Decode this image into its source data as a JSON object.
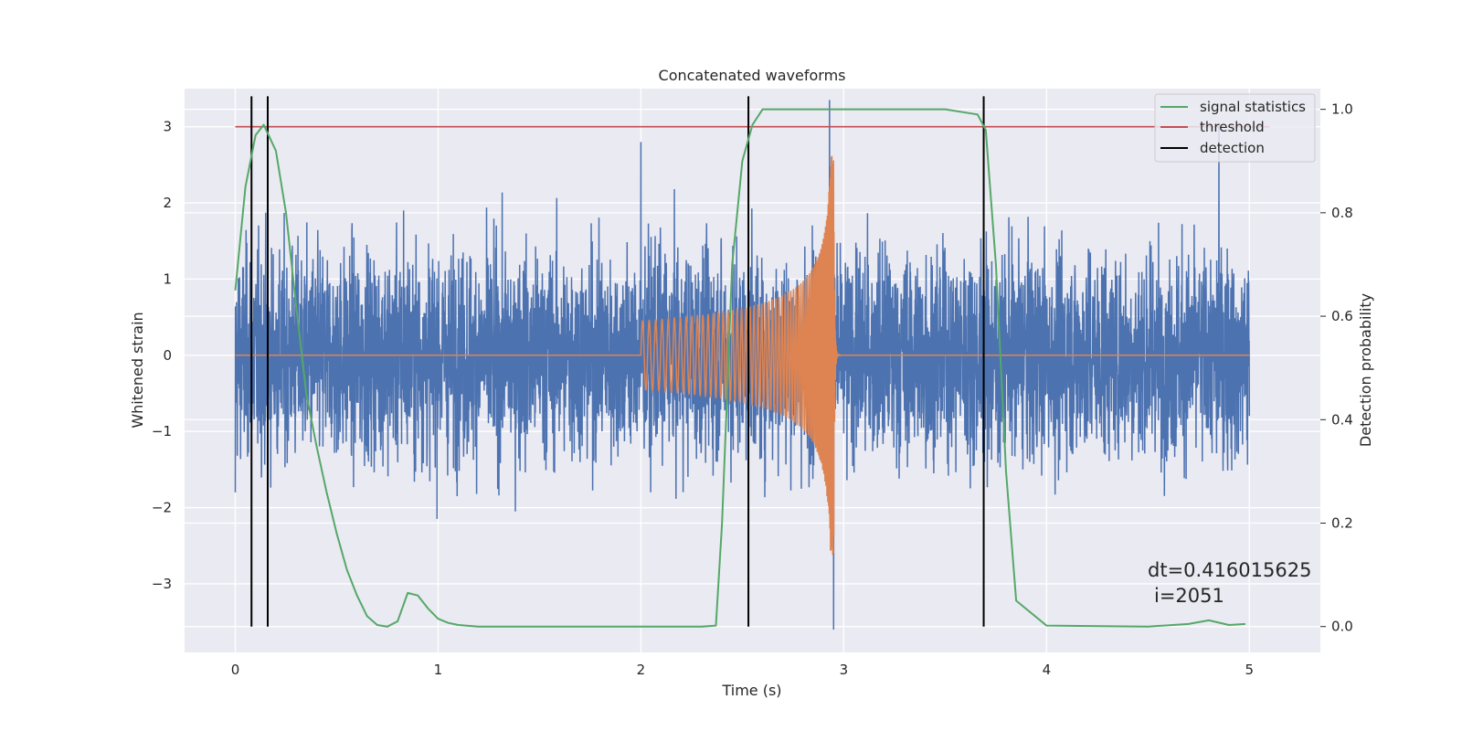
{
  "chart_data": {
    "type": "line",
    "title": "Concatenated waveforms",
    "xlabel": "Time (s)",
    "ylabel_left": "Whitened strain",
    "ylabel_right": "Detection probability",
    "xlim": [
      -0.25,
      5.35
    ],
    "ylim_left": [
      -3.9,
      3.5
    ],
    "ylim_right": [
      -0.05,
      1.04
    ],
    "grid": true,
    "legend_position": "top-right",
    "x_ticks": [
      "0",
      "1",
      "2",
      "3",
      "4",
      "5"
    ],
    "y_ticks_left": [
      "3",
      "2",
      "1",
      "0",
      "−1",
      "−2",
      "−3"
    ],
    "y_ticks_right": [
      "1.0",
      "0.8",
      "0.6",
      "0.4",
      "0.2",
      "0.0"
    ],
    "series": [
      {
        "name": "",
        "role": "whitened strain noise",
        "color": "#4c72b0",
        "x_range": [
          0,
          5
        ],
        "typical_amplitude": [
          -2.5,
          2.4
        ],
        "peaks": [
          [
            0.0,
            -1.8
          ],
          [
            0.83,
            1.9
          ],
          [
            2.0,
            2.8
          ],
          [
            2.93,
            3.35
          ],
          [
            2.95,
            -3.6
          ],
          [
            4.85,
            3.0
          ]
        ]
      },
      {
        "name": "",
        "role": "injected chirp",
        "color": "#dd8452",
        "x_range": [
          0,
          5
        ],
        "chirp_start": 2.0,
        "chirp_end": 2.95,
        "amplitude_start": 0.45,
        "amplitude_peak": 2.9
      },
      {
        "name": "signal statistics",
        "color": "#55a868",
        "axis": "right",
        "x": [
          0,
          0.05,
          0.1,
          0.14,
          0.2,
          0.25,
          0.3,
          0.35,
          0.4,
          0.45,
          0.5,
          0.55,
          0.6,
          0.65,
          0.7,
          0.75,
          0.8,
          0.85,
          0.9,
          0.95,
          1.0,
          1.05,
          1.1,
          1.2,
          1.5,
          2.0,
          2.3,
          2.37,
          2.4,
          2.45,
          2.5,
          2.55,
          2.6,
          2.7,
          3.0,
          3.5,
          3.66,
          3.7,
          3.75,
          3.8,
          3.85,
          4.0,
          4.5,
          4.7,
          4.8,
          4.9,
          4.98
        ],
        "values": [
          0.65,
          0.85,
          0.95,
          0.97,
          0.92,
          0.8,
          0.62,
          0.45,
          0.35,
          0.26,
          0.18,
          0.11,
          0.06,
          0.02,
          0.003,
          0.0,
          0.01,
          0.065,
          0.06,
          0.035,
          0.015,
          0.007,
          0.003,
          0.0,
          0.0,
          0.0,
          0.0,
          0.002,
          0.2,
          0.7,
          0.9,
          0.97,
          1.0,
          1.0,
          1.0,
          1.0,
          0.99,
          0.96,
          0.7,
          0.3,
          0.05,
          0.002,
          0.0,
          0.005,
          0.012,
          0.003,
          0.005
        ]
      },
      {
        "name": "threshold",
        "color": "#c44e52",
        "axis": "left",
        "x": [
          0,
          5.1
        ],
        "values": [
          3.0,
          3.0
        ]
      },
      {
        "name": "detection",
        "color": "#000000",
        "type": "vlines",
        "x": [
          0.08,
          0.16,
          2.53,
          3.69
        ]
      }
    ],
    "annotations": [
      "dt=0.416015625",
      "i=2051"
    ]
  }
}
